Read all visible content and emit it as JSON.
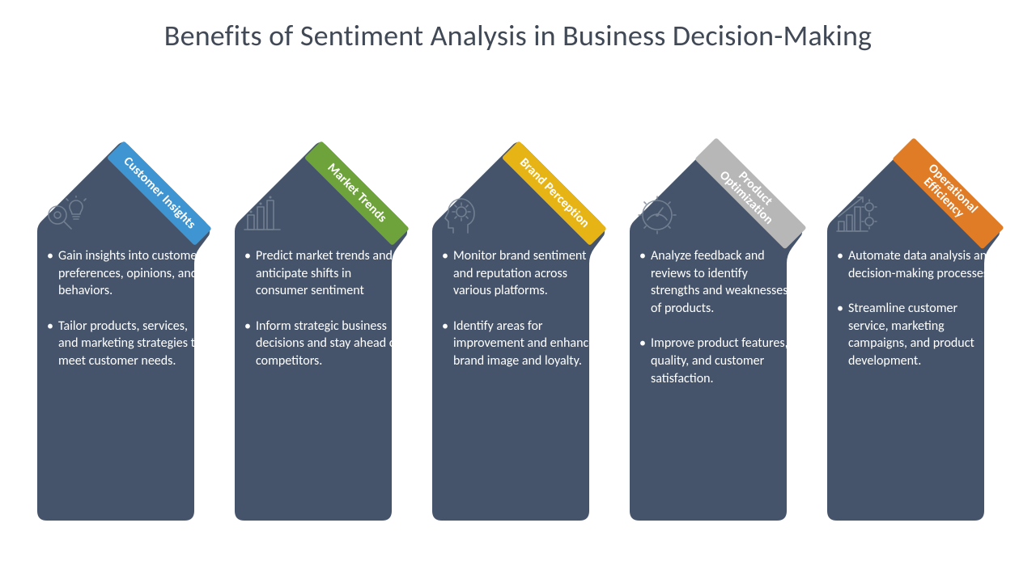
{
  "title": "Benefits of Sentiment Analysis in Business Decision-Making",
  "card_fill": "#45546b",
  "card_stroke": "#ffffff",
  "cards": [
    {
      "label": "Customer Insights",
      "band_color": "#3e95d1",
      "icon": "search-idea",
      "bullets": [
        "Gain insights into customer preferences, opinions, and behaviors.",
        "Tailor products, services, and marketing strategies to meet customer needs."
      ]
    },
    {
      "label": "Market Trends",
      "band_color": "#6ea33b",
      "icon": "bar-chart",
      "bullets": [
        "Predict market trends and anticipate shifts in consumer sentiment",
        "Inform strategic business decisions and stay ahead of competitors."
      ]
    },
    {
      "label": "Brand Perception",
      "band_color": "#e7b416",
      "icon": "head-gear",
      "bullets": [
        "Monitor brand sentiment and reputation across various platforms.",
        "Identify areas for improvement and enhance brand image and loyalty."
      ]
    },
    {
      "label": "Product Optimization",
      "band_color": "#b7b7b7",
      "icon": "gauge-gear",
      "two_line": true,
      "bullets": [
        "Analyze feedback and reviews to identify strengths and weaknesses of products.",
        "Improve product features, quality, and customer satisfaction."
      ]
    },
    {
      "label": "Operational Efficiency",
      "band_color": "#e07b26",
      "icon": "growth-gears",
      "two_line": true,
      "bullets": [
        "Automate data analysis and decision-making processes.",
        "Streamline customer service, marketing campaigns, and product development."
      ]
    }
  ]
}
